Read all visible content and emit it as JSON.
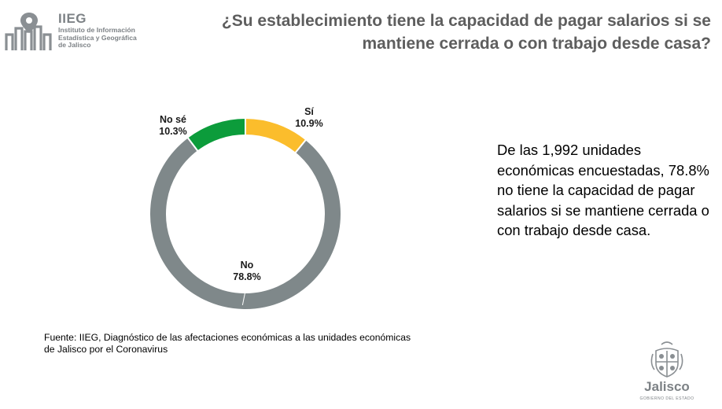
{
  "header": {
    "logo_acronym": "IIEG",
    "logo_name_lines": [
      "Instituto de Información",
      "Estadística y Geográfica",
      "de Jalisco"
    ],
    "title": "¿Su establecimiento tiene la capacidad de pagar salarios si se mantiene cerrada o con trabajo desde casa?"
  },
  "colors": {
    "title": "#5e5e5e",
    "logo": "#7d8286",
    "si": "#fbbd2c",
    "no": "#7f888a",
    "nose": "#0c9c3b"
  },
  "chart_data": {
    "type": "pie",
    "variant": "donut",
    "slices": [
      {
        "label": "Sí",
        "value": 10.9,
        "display": "10.9%",
        "color": "#fbbd2c"
      },
      {
        "label": "No",
        "value": 78.8,
        "display": "78.8%",
        "color": "#7f888a"
      },
      {
        "label": "No sé",
        "value": 10.3,
        "display": "10.3%",
        "color": "#0c9c3b"
      }
    ],
    "start": "top",
    "direction": "clockwise"
  },
  "description": "De las 1,992 unidades económicas encuestadas, 78.8% no tiene la capacidad de pagar salarios si se mantiene cerrada o con trabajo desde casa.",
  "source": "Fuente: IIEG, Diagnóstico de las afectaciones económicas a las unidades económicas de Jalisco por el Coronavirus",
  "footer_logo": {
    "word": "Jalisco",
    "sub": "GOBIERNO DEL ESTADO"
  }
}
